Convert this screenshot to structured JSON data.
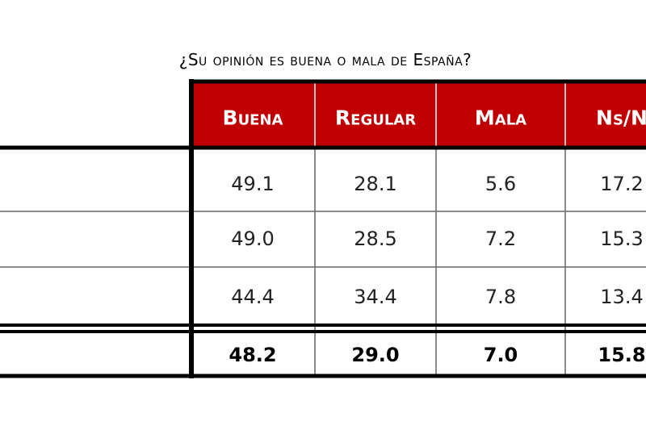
{
  "title": "¿Su opinión es buena o mala de España?",
  "table": {
    "header": [
      "Buena",
      "Regular",
      "Mala",
      "Ns/N"
    ],
    "rows": [
      [
        "49.1",
        "28.1",
        "5.6",
        "17.2"
      ],
      [
        "49.0",
        "28.5",
        "7.2",
        "15.3"
      ],
      [
        "44.4",
        "34.4",
        "7.8",
        "13.4"
      ]
    ],
    "total": [
      "48.2",
      "29.0",
      "7.0",
      "15.8"
    ]
  }
}
